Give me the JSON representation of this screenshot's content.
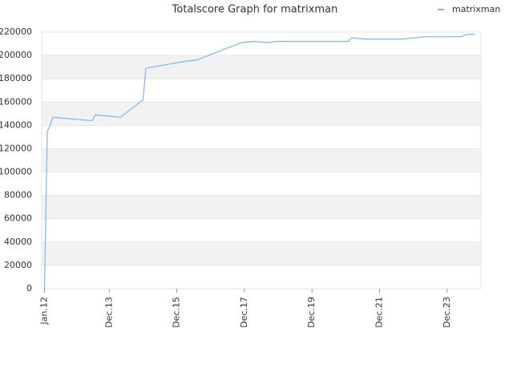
{
  "chart_data": {
    "type": "line",
    "title": "Totalscore Graph for matrixman",
    "x": [
      "2012-01",
      "2012-02",
      "2012-03",
      "2012-04",
      "2013-06",
      "2013-07",
      "2014-04",
      "2014-12",
      "2015-01",
      "2016-03",
      "2016-07",
      "2017-11",
      "2018-03",
      "2018-08",
      "2018-11",
      "2021-01",
      "2021-02",
      "2021-07",
      "2022-08",
      "2023-04",
      "2024-05",
      "2024-07",
      "2024-10"
    ],
    "series": [
      {
        "name": "matrixman",
        "color": "#7cb5ec",
        "values": [
          0,
          135000,
          140000,
          147000,
          144000,
          149000,
          147000,
          162000,
          189000,
          195000,
          196000,
          211000,
          212000,
          211000,
          212000,
          212000,
          215000,
          214000,
          214000,
          216000,
          216000,
          218000,
          218000
        ]
      }
    ],
    "xlim": [
      "2011-12",
      "2024-12"
    ],
    "xticks": [
      {
        "value": "2012-01",
        "label": "Jan.12"
      },
      {
        "value": "2013-12",
        "label": "Dec.13"
      },
      {
        "value": "2015-12",
        "label": "Dec.15"
      },
      {
        "value": "2017-12",
        "label": "Dec.17"
      },
      {
        "value": "2019-12",
        "label": "Dec.19"
      },
      {
        "value": "2021-12",
        "label": "Dec.21"
      },
      {
        "value": "2023-12",
        "label": "Dec.23"
      }
    ],
    "ylim": [
      0,
      220000
    ],
    "yticks": [
      0,
      20000,
      40000,
      60000,
      80000,
      100000,
      120000,
      140000,
      160000,
      180000,
      200000,
      220000
    ],
    "grid": true,
    "legend": "top-right"
  }
}
